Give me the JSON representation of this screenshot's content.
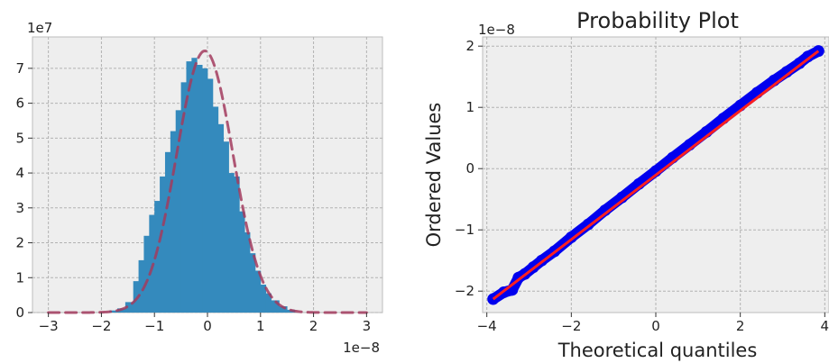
{
  "chart_data": [
    {
      "type": "bar",
      "subtype": "histogram",
      "title": "",
      "xlabel": "",
      "ylabel": "",
      "x_scale_label": "1e−8",
      "y_scale_label": "1e7",
      "xlim": [
        -3.3,
        3.3
      ],
      "ylim": [
        0,
        7.9
      ],
      "xticks": [
        -3,
        -2,
        -1,
        0,
        1,
        2,
        3
      ],
      "xtick_labels": [
        "−3",
        "−2",
        "−1",
        "0",
        "1",
        "2",
        "3"
      ],
      "yticks": [
        0,
        1,
        2,
        3,
        4,
        5,
        6,
        7
      ],
      "ytick_labels": [
        "0",
        "1",
        "2",
        "3",
        "4",
        "5",
        "6",
        "7"
      ],
      "grid": true,
      "bar_color": "#348abd",
      "bins": [
        {
          "x0": -1.85,
          "x1": -1.7,
          "value": 0.06
        },
        {
          "x0": -1.7,
          "x1": -1.55,
          "value": 0.12
        },
        {
          "x0": -1.55,
          "x1": -1.4,
          "value": 0.3
        },
        {
          "x0": -1.4,
          "x1": -1.3,
          "value": 0.9
        },
        {
          "x0": -1.3,
          "x1": -1.2,
          "value": 1.5
        },
        {
          "x0": -1.2,
          "x1": -1.1,
          "value": 2.2
        },
        {
          "x0": -1.1,
          "x1": -1.0,
          "value": 2.8
        },
        {
          "x0": -1.0,
          "x1": -0.9,
          "value": 3.2
        },
        {
          "x0": -0.9,
          "x1": -0.8,
          "value": 3.9
        },
        {
          "x0": -0.8,
          "x1": -0.7,
          "value": 4.6
        },
        {
          "x0": -0.7,
          "x1": -0.6,
          "value": 5.2
        },
        {
          "x0": -0.6,
          "x1": -0.5,
          "value": 5.8
        },
        {
          "x0": -0.5,
          "x1": -0.4,
          "value": 6.6
        },
        {
          "x0": -0.4,
          "x1": -0.3,
          "value": 7.2
        },
        {
          "x0": -0.3,
          "x1": -0.2,
          "value": 7.3
        },
        {
          "x0": -0.2,
          "x1": -0.1,
          "value": 7.1
        },
        {
          "x0": -0.1,
          "x1": 0.0,
          "value": 7.0
        },
        {
          "x0": 0.0,
          "x1": 0.1,
          "value": 6.7
        },
        {
          "x0": 0.1,
          "x1": 0.2,
          "value": 5.9
        },
        {
          "x0": 0.2,
          "x1": 0.3,
          "value": 5.4
        },
        {
          "x0": 0.3,
          "x1": 0.4,
          "value": 4.9
        },
        {
          "x0": 0.4,
          "x1": 0.5,
          "value": 4.0
        },
        {
          "x0": 0.5,
          "x1": 0.6,
          "value": 3.9
        },
        {
          "x0": 0.6,
          "x1": 0.7,
          "value": 2.9
        },
        {
          "x0": 0.7,
          "x1": 0.8,
          "value": 2.3
        },
        {
          "x0": 0.8,
          "x1": 0.9,
          "value": 1.7
        },
        {
          "x0": 0.9,
          "x1": 1.0,
          "value": 1.2
        },
        {
          "x0": 1.0,
          "x1": 1.1,
          "value": 0.8
        },
        {
          "x0": 1.1,
          "x1": 1.2,
          "value": 0.55
        },
        {
          "x0": 1.2,
          "x1": 1.35,
          "value": 0.35
        },
        {
          "x0": 1.35,
          "x1": 1.5,
          "value": 0.18
        },
        {
          "x0": 1.5,
          "x1": 1.65,
          "value": 0.08
        }
      ],
      "fit_curve": {
        "style": "dashed",
        "color": "#a23b5e",
        "peak": 7.5,
        "mean": -0.05,
        "sd": 0.53,
        "x_range": [
          -3.0,
          3.0
        ]
      }
    },
    {
      "type": "scatter",
      "title": "Probability Plot",
      "xlabel": "Theoretical quantiles",
      "ylabel": "Ordered Values",
      "y_scale_label": "1e−8",
      "xlim": [
        -4.1,
        4.1
      ],
      "ylim": [
        -2.35,
        2.15
      ],
      "xticks": [
        -4,
        -2,
        0,
        2,
        4
      ],
      "xtick_labels": [
        "−4",
        "−2",
        "0",
        "2",
        "4"
      ],
      "yticks": [
        -2,
        -1,
        0,
        1,
        2
      ],
      "ytick_labels": [
        "−2",
        "−1",
        "0",
        "1",
        "2"
      ],
      "grid": true,
      "point_color": "#0000ee",
      "fit_line_color": "#ff1f1f",
      "fit_line": {
        "x": [
          -3.85,
          3.85
        ],
        "y": [
          -2.13,
          1.92
        ]
      },
      "points": [
        {
          "x": -3.85,
          "y": -2.13
        },
        {
          "x": -3.6,
          "y": -2.02
        },
        {
          "x": -3.4,
          "y": -1.98
        },
        {
          "x": -3.25,
          "y": -1.78
        },
        {
          "x": -3.1,
          "y": -1.72
        },
        {
          "x": -2.9,
          "y": -1.61
        },
        {
          "x": -2.7,
          "y": -1.5
        },
        {
          "x": -2.4,
          "y": -1.35
        },
        {
          "x": -2.0,
          "y": -1.12
        },
        {
          "x": -1.6,
          "y": -0.91
        },
        {
          "x": -1.2,
          "y": -0.68
        },
        {
          "x": -0.8,
          "y": -0.47
        },
        {
          "x": -0.4,
          "y": -0.25
        },
        {
          "x": 0.0,
          "y": -0.04
        },
        {
          "x": 0.4,
          "y": 0.18
        },
        {
          "x": 0.8,
          "y": 0.39
        },
        {
          "x": 1.2,
          "y": 0.6
        },
        {
          "x": 1.6,
          "y": 0.82
        },
        {
          "x": 2.0,
          "y": 1.03
        },
        {
          "x": 2.4,
          "y": 1.24
        },
        {
          "x": 2.8,
          "y": 1.44
        },
        {
          "x": 3.1,
          "y": 1.58
        },
        {
          "x": 3.4,
          "y": 1.72
        },
        {
          "x": 3.6,
          "y": 1.83
        },
        {
          "x": 3.85,
          "y": 1.92
        }
      ]
    }
  ]
}
